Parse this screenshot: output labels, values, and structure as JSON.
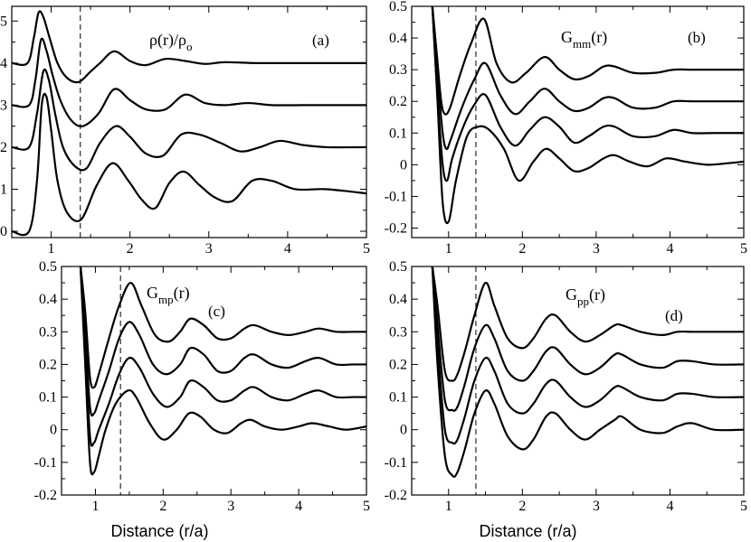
{
  "chart_data": [
    {
      "id": "a",
      "type": "line",
      "tag": "(a)",
      "title_main": "ρ(r)/ρ",
      "title_sub": "o",
      "title_tail": "",
      "xlim": [
        0.5,
        5
      ],
      "ylim": [
        -0.15,
        5.35
      ],
      "xticks": [
        1,
        2,
        3,
        4,
        5
      ],
      "yticks": [
        0,
        1,
        2,
        3,
        4,
        5
      ],
      "vline_x": 1.37,
      "xlabel": "",
      "series": [
        {
          "x": [
            0.5,
            0.72,
            0.82,
            0.88,
            0.94,
            1.0,
            1.08,
            1.2,
            1.38,
            1.58,
            1.78,
            1.98,
            2.15,
            2.32,
            2.5,
            2.68,
            2.88,
            3.08,
            3.3,
            3.55,
            3.8,
            4.1,
            4.5,
            5.0
          ],
          "y": [
            0,
            0,
            1.2,
            3.0,
            3.2,
            2.4,
            1.2,
            0.45,
            0.28,
            1.1,
            1.62,
            1.2,
            0.75,
            0.55,
            1.15,
            1.42,
            1.1,
            0.8,
            0.72,
            1.2,
            1.2,
            1.0,
            1.0,
            0.9
          ]
        },
        {
          "x": [
            0.5,
            0.72,
            0.82,
            0.9,
            0.97,
            1.05,
            1.15,
            1.3,
            1.45,
            1.62,
            1.82,
            2.0,
            2.2,
            2.42,
            2.65,
            2.88,
            3.15,
            3.4,
            3.65,
            3.9,
            4.2,
            4.5,
            5.0
          ],
          "y": [
            2.0,
            2.0,
            2.8,
            3.8,
            3.6,
            2.8,
            2.0,
            1.55,
            1.5,
            2.1,
            2.5,
            2.25,
            1.85,
            1.8,
            2.3,
            2.3,
            2.1,
            1.9,
            2.0,
            2.15,
            2.05,
            2.0,
            2.0
          ]
        },
        {
          "x": [
            0.5,
            0.72,
            0.8,
            0.87,
            0.94,
            1.02,
            1.12,
            1.25,
            1.4,
            1.6,
            1.8,
            2.0,
            2.2,
            2.45,
            2.7,
            2.95,
            3.2,
            3.5,
            3.8,
            4.2,
            4.6,
            5.0
          ],
          "y": [
            3.0,
            3.0,
            3.6,
            4.55,
            4.3,
            3.7,
            3.1,
            2.65,
            2.5,
            2.8,
            3.38,
            3.12,
            2.9,
            2.9,
            3.25,
            3.05,
            3.0,
            3.05,
            3.0,
            3.0,
            3.0,
            3.0
          ]
        },
        {
          "x": [
            0.5,
            0.7,
            0.78,
            0.84,
            0.9,
            0.98,
            1.08,
            1.2,
            1.35,
            1.5,
            1.62,
            1.8,
            2.0,
            2.2,
            2.45,
            2.7,
            2.95,
            3.2,
            3.6,
            4.0,
            4.5,
            5.0
          ],
          "y": [
            4.0,
            4.0,
            4.6,
            5.2,
            5.1,
            4.6,
            4.0,
            3.65,
            3.55,
            3.8,
            4.0,
            4.28,
            4.05,
            3.95,
            4.1,
            4.05,
            3.98,
            4.02,
            4.0,
            4.0,
            4.0,
            4.0
          ]
        }
      ]
    },
    {
      "id": "b",
      "type": "line",
      "tag": "(b)",
      "title_main": "G",
      "title_sub": "mm",
      "title_tail": "(r)",
      "xlim": [
        0.5,
        5
      ],
      "ylim": [
        -0.23,
        0.5
      ],
      "xticks": [
        1,
        2,
        3,
        4,
        5
      ],
      "yticks": [
        -0.2,
        -0.1,
        0,
        0.1,
        0.2,
        0.3,
        0.4,
        0.5
      ],
      "vline_x": 1.37,
      "xlabel": "",
      "series": [
        {
          "x": [
            0.78,
            0.85,
            0.92,
            1.0,
            1.1,
            1.25,
            1.4,
            1.55,
            1.75,
            1.95,
            2.15,
            2.32,
            2.5,
            2.7,
            2.9,
            3.1,
            3.25,
            3.45,
            3.7,
            3.95,
            4.2,
            4.5,
            4.8,
            5.0
          ],
          "y": [
            0.5,
            0.2,
            -0.12,
            -0.18,
            -0.05,
            0.09,
            0.12,
            0.11,
            0.05,
            -0.05,
            0.01,
            0.05,
            0.02,
            -0.02,
            -0.01,
            0.02,
            0.03,
            0.01,
            -0.005,
            0.02,
            0.01,
            0.0,
            0.005,
            0.01
          ]
        },
        {
          "x": [
            0.78,
            0.85,
            0.92,
            0.98,
            1.05,
            1.2,
            1.35,
            1.5,
            1.7,
            1.9,
            2.1,
            2.3,
            2.5,
            2.7,
            2.9,
            3.1,
            3.25,
            3.5,
            3.8,
            4.05,
            4.3,
            4.6,
            5.0
          ],
          "y": [
            0.5,
            0.22,
            0.0,
            -0.05,
            0.02,
            0.12,
            0.19,
            0.22,
            0.12,
            0.06,
            0.11,
            0.15,
            0.12,
            0.07,
            0.09,
            0.12,
            0.12,
            0.09,
            0.09,
            0.11,
            0.1,
            0.1,
            0.1
          ]
        },
        {
          "x": [
            0.78,
            0.85,
            0.92,
            0.97,
            1.03,
            1.18,
            1.35,
            1.5,
            1.7,
            1.9,
            2.1,
            2.3,
            2.5,
            2.7,
            2.9,
            3.1,
            3.25,
            3.5,
            3.8,
            4.05,
            4.3,
            4.6,
            5.0
          ],
          "y": [
            0.5,
            0.28,
            0.1,
            0.05,
            0.08,
            0.18,
            0.27,
            0.32,
            0.22,
            0.16,
            0.2,
            0.24,
            0.2,
            0.17,
            0.18,
            0.21,
            0.21,
            0.18,
            0.18,
            0.2,
            0.2,
            0.2,
            0.2
          ]
        },
        {
          "x": [
            0.78,
            0.84,
            0.9,
            0.95,
            1.02,
            1.15,
            1.3,
            1.48,
            1.65,
            1.85,
            2.05,
            2.3,
            2.5,
            2.7,
            2.9,
            3.1,
            3.25,
            3.5,
            3.8,
            4.05,
            4.3,
            4.6,
            5.0
          ],
          "y": [
            0.5,
            0.35,
            0.2,
            0.16,
            0.18,
            0.28,
            0.38,
            0.46,
            0.32,
            0.26,
            0.29,
            0.34,
            0.3,
            0.27,
            0.28,
            0.31,
            0.31,
            0.29,
            0.29,
            0.3,
            0.3,
            0.3,
            0.3
          ]
        }
      ]
    },
    {
      "id": "c",
      "type": "line",
      "tag": "(c)",
      "title_main": "G",
      "title_sub": "mp",
      "title_tail": "(r)",
      "xlim": [
        0.5,
        5
      ],
      "ylim": [
        -0.2,
        0.5
      ],
      "xticks": [
        1,
        2,
        3,
        4,
        5
      ],
      "yticks": [
        -0.2,
        -0.1,
        0,
        0.1,
        0.2,
        0.3,
        0.4,
        0.5
      ],
      "vline_x": 1.37,
      "xlabel": "Distance   (r/a)",
      "series": [
        {
          "x": [
            0.78,
            0.85,
            0.92,
            0.98,
            1.05,
            1.15,
            1.3,
            1.48,
            1.6,
            1.8,
            2.0,
            2.2,
            2.38,
            2.55,
            2.75,
            2.95,
            3.15,
            3.3,
            3.5,
            3.75,
            4.0,
            4.2,
            4.45,
            4.7,
            5.0
          ],
          "y": [
            0.5,
            0.2,
            -0.1,
            -0.13,
            -0.08,
            0.0,
            0.08,
            0.12,
            0.1,
            0.02,
            -0.03,
            0.0,
            0.05,
            0.04,
            0.0,
            -0.01,
            0.02,
            0.03,
            0.01,
            0.0,
            0.01,
            0.02,
            0.01,
            0.0,
            0.01
          ]
        },
        {
          "x": [
            0.78,
            0.85,
            0.92,
            0.98,
            1.05,
            1.2,
            1.35,
            1.5,
            1.65,
            1.85,
            2.05,
            2.25,
            2.4,
            2.6,
            2.8,
            3.0,
            3.2,
            3.35,
            3.6,
            3.85,
            4.1,
            4.3,
            4.55,
            4.8,
            5.0
          ],
          "y": [
            0.5,
            0.25,
            -0.02,
            -0.04,
            0.0,
            0.08,
            0.17,
            0.22,
            0.19,
            0.11,
            0.07,
            0.1,
            0.15,
            0.13,
            0.09,
            0.09,
            0.12,
            0.13,
            0.1,
            0.09,
            0.11,
            0.12,
            0.1,
            0.1,
            0.1
          ]
        },
        {
          "x": [
            0.78,
            0.85,
            0.92,
            0.98,
            1.05,
            1.2,
            1.35,
            1.5,
            1.65,
            1.85,
            2.05,
            2.25,
            2.4,
            2.6,
            2.8,
            3.0,
            3.2,
            3.35,
            3.6,
            3.85,
            4.1,
            4.3,
            4.55,
            4.8,
            5.0
          ],
          "y": [
            0.5,
            0.3,
            0.07,
            0.05,
            0.09,
            0.18,
            0.28,
            0.33,
            0.29,
            0.2,
            0.17,
            0.2,
            0.25,
            0.23,
            0.18,
            0.18,
            0.22,
            0.23,
            0.2,
            0.19,
            0.21,
            0.22,
            0.2,
            0.2,
            0.2
          ]
        },
        {
          "x": [
            0.78,
            0.85,
            0.92,
            0.98,
            1.05,
            1.2,
            1.35,
            1.52,
            1.68,
            1.88,
            2.08,
            2.25,
            2.4,
            2.6,
            2.8,
            3.0,
            3.2,
            3.35,
            3.6,
            3.85,
            4.1,
            4.3,
            4.55,
            4.8,
            5.0
          ],
          "y": [
            0.5,
            0.36,
            0.16,
            0.13,
            0.17,
            0.28,
            0.38,
            0.45,
            0.38,
            0.29,
            0.27,
            0.3,
            0.34,
            0.32,
            0.28,
            0.28,
            0.31,
            0.32,
            0.3,
            0.29,
            0.3,
            0.31,
            0.3,
            0.3,
            0.3
          ]
        }
      ]
    },
    {
      "id": "d",
      "type": "line",
      "tag": "(d)",
      "title_main": "G",
      "title_sub": "pp",
      "title_tail": "(r)",
      "xlim": [
        0.5,
        5
      ],
      "ylim": [
        -0.2,
        0.5
      ],
      "xticks": [
        1,
        2,
        3,
        4,
        5
      ],
      "yticks": [
        -0.2,
        -0.1,
        0,
        0.1,
        0.2,
        0.3,
        0.4,
        0.5
      ],
      "vline_x": 1.37,
      "xlabel": "Distance   (r/a)",
      "series": [
        {
          "x": [
            0.78,
            0.85,
            0.95,
            1.05,
            1.12,
            1.22,
            1.35,
            1.5,
            1.62,
            1.8,
            2.0,
            2.15,
            2.32,
            2.45,
            2.65,
            2.85,
            3.05,
            3.25,
            3.35,
            3.6,
            3.9,
            4.1,
            4.3,
            4.6,
            5.0
          ],
          "y": [
            0.5,
            0.2,
            -0.08,
            -0.14,
            -0.13,
            -0.06,
            0.05,
            0.12,
            0.08,
            -0.02,
            -0.06,
            -0.03,
            0.04,
            0.05,
            0.0,
            -0.03,
            0.0,
            0.03,
            0.04,
            0.0,
            -0.01,
            0.01,
            0.02,
            0.0,
            0.0
          ]
        },
        {
          "x": [
            0.78,
            0.85,
            0.95,
            1.05,
            1.12,
            1.22,
            1.35,
            1.5,
            1.62,
            1.8,
            2.0,
            2.15,
            2.32,
            2.45,
            2.65,
            2.85,
            3.05,
            3.25,
            3.35,
            3.6,
            3.9,
            4.1,
            4.3,
            4.6,
            5.0
          ],
          "y": [
            0.5,
            0.26,
            0.0,
            -0.04,
            -0.03,
            0.04,
            0.15,
            0.22,
            0.18,
            0.08,
            0.05,
            0.08,
            0.14,
            0.15,
            0.1,
            0.07,
            0.09,
            0.13,
            0.13,
            0.1,
            0.09,
            0.11,
            0.11,
            0.1,
            0.1
          ]
        },
        {
          "x": [
            0.78,
            0.85,
            0.95,
            1.05,
            1.12,
            1.22,
            1.35,
            1.5,
            1.62,
            1.8,
            2.0,
            2.15,
            2.32,
            2.45,
            2.65,
            2.85,
            3.05,
            3.25,
            3.35,
            3.6,
            3.9,
            4.1,
            4.3,
            4.6,
            5.0
          ],
          "y": [
            0.5,
            0.32,
            0.09,
            0.06,
            0.07,
            0.14,
            0.25,
            0.32,
            0.28,
            0.18,
            0.15,
            0.18,
            0.24,
            0.25,
            0.2,
            0.17,
            0.19,
            0.23,
            0.23,
            0.2,
            0.19,
            0.21,
            0.21,
            0.2,
            0.2
          ]
        },
        {
          "x": [
            0.78,
            0.85,
            0.95,
            1.05,
            1.12,
            1.22,
            1.35,
            1.5,
            1.62,
            1.8,
            2.0,
            2.15,
            2.32,
            2.45,
            2.65,
            2.85,
            3.05,
            3.25,
            3.35,
            3.6,
            3.9,
            4.1,
            4.3,
            4.6,
            5.0
          ],
          "y": [
            0.5,
            0.38,
            0.18,
            0.15,
            0.17,
            0.24,
            0.35,
            0.45,
            0.38,
            0.28,
            0.25,
            0.28,
            0.34,
            0.35,
            0.3,
            0.27,
            0.29,
            0.32,
            0.32,
            0.3,
            0.29,
            0.3,
            0.3,
            0.3,
            0.3
          ]
        }
      ]
    }
  ]
}
